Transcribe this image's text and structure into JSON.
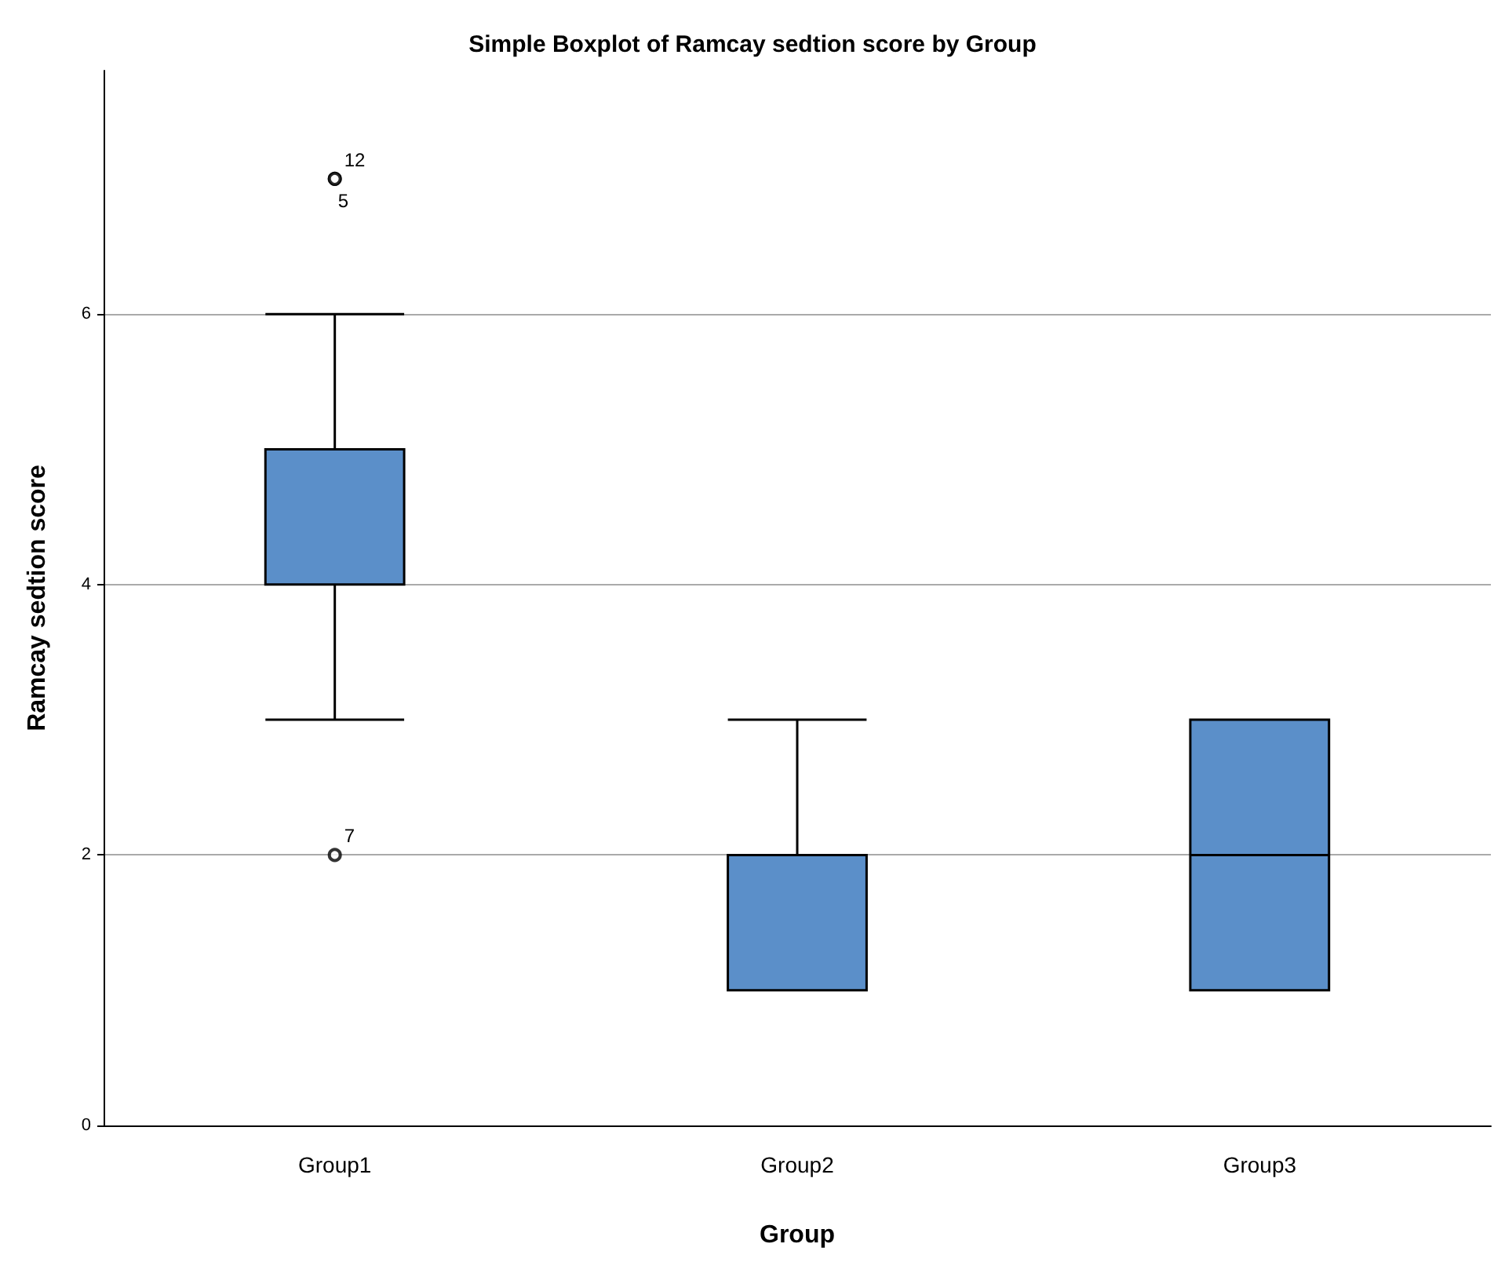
{
  "chart_data": {
    "type": "box",
    "title": "Simple Boxplot of Ramcay sedtion score by Group",
    "xlabel": "Group",
    "ylabel": "Ramcay sedtion score",
    "categories": [
      "Group1",
      "Group2",
      "Group3"
    ],
    "boxes": [
      {
        "low": 3,
        "q1": 4,
        "median": 5,
        "q3": 5,
        "high": 6,
        "outliers": [
          7,
          7,
          2
        ]
      },
      {
        "low": 1,
        "q1": 1,
        "median": 2,
        "q3": 2,
        "high": 3
      },
      {
        "low": 1,
        "q1": 1,
        "median": 2,
        "q3": 3,
        "high": 3
      }
    ],
    "color": "#5b8fc9",
    "ylim": [
      0,
      7.8
    ],
    "yticks": [
      0,
      2,
      4,
      6
    ],
    "grid": "y",
    "annotations": [
      "12",
      "5",
      "7"
    ]
  }
}
